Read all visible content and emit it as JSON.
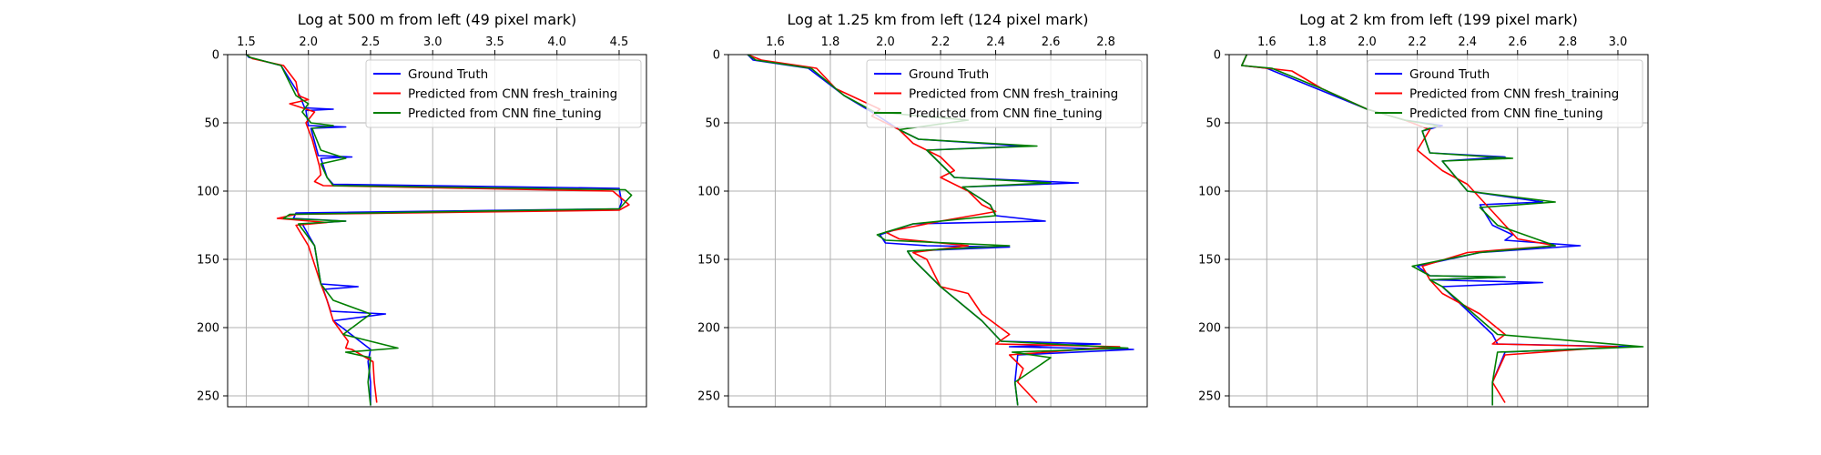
{
  "chart_data": [
    {
      "type": "line",
      "title": "Log at 500 m from left (49 pixel mark)",
      "xlim": [
        1.35,
        4.72
      ],
      "ylim": [
        0,
        258
      ],
      "y_inverted": true,
      "x_axis_position": "top",
      "xticks": [
        1.5,
        2.0,
        2.5,
        3.0,
        3.5,
        4.0,
        4.5
      ],
      "xtick_labels": [
        "1.5",
        "2.0",
        "2.5",
        "3.0",
        "3.5",
        "4.0",
        "4.5"
      ],
      "yticks": [
        0,
        50,
        100,
        150,
        200,
        250
      ],
      "ytick_labels": [
        "0",
        "50",
        "100",
        "150",
        "200",
        "250"
      ],
      "grid": true,
      "legend_position": "top-right",
      "series": [
        {
          "name": "Ground Truth",
          "color": "#0000ff",
          "x": [
            1.5,
            1.52,
            1.78,
            1.93,
            1.97,
            2.2,
            1.98,
            2.0,
            2.3,
            2.02,
            2.08,
            2.35,
            2.1,
            2.15,
            2.2,
            4.5,
            4.52,
            4.5,
            1.9,
            1.88,
            2.3,
            1.95,
            2.05,
            2.1,
            2.4,
            2.12,
            2.18,
            2.62,
            2.2,
            2.5,
            2.48,
            2.5,
            2.5
          ],
          "y": [
            0,
            2,
            8,
            30,
            39,
            40,
            41,
            52,
            53,
            54,
            74,
            75,
            76,
            90,
            95,
            98,
            108,
            113,
            116,
            120,
            122,
            124,
            140,
            168,
            170,
            172,
            188,
            190,
            195,
            216,
            225,
            240,
            257
          ]
        },
        {
          "name": "Predicted from CNN fresh_training",
          "color": "#ff0000",
          "x": [
            1.5,
            1.55,
            1.8,
            1.9,
            1.92,
            2.0,
            1.85,
            2.05,
            1.98,
            2.03,
            2.06,
            2.09,
            2.1,
            2.05,
            2.12,
            4.45,
            4.58,
            4.5,
            1.9,
            1.75,
            2.15,
            1.9,
            2.0,
            2.1,
            2.15,
            2.2,
            2.28,
            2.32,
            2.3,
            2.35,
            2.52,
            2.53,
            2.55
          ],
          "y": [
            0,
            3,
            8,
            20,
            30,
            33,
            36,
            42,
            50,
            62,
            72,
            82,
            88,
            93,
            96,
            100,
            110,
            114,
            117,
            120,
            123,
            125,
            140,
            168,
            180,
            195,
            205,
            210,
            215,
            216,
            225,
            240,
            255
          ]
        },
        {
          "name": "Predicted from CNN fine_tuning",
          "color": "#007f00",
          "x": [
            1.5,
            1.53,
            1.78,
            1.9,
            2.0,
            1.95,
            2.02,
            2.2,
            2.03,
            2.1,
            2.3,
            2.1,
            2.15,
            2.2,
            4.55,
            4.6,
            4.5,
            1.85,
            1.8,
            2.3,
            1.92,
            2.05,
            2.1,
            2.2,
            2.5,
            2.28,
            2.72,
            2.3,
            2.5,
            2.48,
            2.5
          ],
          "y": [
            0,
            2,
            8,
            30,
            36,
            42,
            50,
            52,
            54,
            70,
            76,
            80,
            90,
            96,
            99,
            103,
            113,
            117,
            120,
            122,
            124,
            140,
            168,
            180,
            190,
            205,
            215,
            218,
            222,
            240,
            257
          ]
        }
      ]
    },
    {
      "type": "line",
      "title": "Log at 1.25 km from left (124 pixel mark)",
      "xlim": [
        1.43,
        2.95
      ],
      "ylim": [
        0,
        258
      ],
      "y_inverted": true,
      "x_axis_position": "top",
      "xticks": [
        1.6,
        1.8,
        2.0,
        2.2,
        2.4,
        2.6,
        2.8
      ],
      "xtick_labels": [
        "1.6",
        "1.8",
        "2.0",
        "2.2",
        "2.4",
        "2.6",
        "2.8"
      ],
      "yticks": [
        0,
        50,
        100,
        150,
        200,
        250
      ],
      "ytick_labels": [
        "0",
        "50",
        "100",
        "150",
        "200",
        "250"
      ],
      "grid": true,
      "legend_position": "top-right",
      "series": [
        {
          "name": "Ground Truth",
          "color": "#0000ff",
          "x": [
            1.5,
            1.52,
            1.72,
            1.85,
            1.95,
            2.05,
            2.12,
            2.5,
            2.15,
            2.25,
            2.7,
            2.28,
            2.38,
            2.4,
            2.58,
            2.1,
            1.98,
            2.0,
            2.15,
            2.45,
            2.08,
            2.1,
            2.2,
            2.35,
            2.42,
            2.78,
            2.45,
            2.9,
            2.48,
            2.47,
            2.48
          ],
          "y": [
            0,
            4,
            10,
            30,
            42,
            55,
            62,
            67,
            70,
            90,
            94,
            97,
            110,
            118,
            122,
            124,
            132,
            138,
            140,
            141,
            144,
            150,
            170,
            195,
            210,
            212,
            214,
            216,
            220,
            240,
            257
          ]
        },
        {
          "name": "Predicted from CNN fresh_training",
          "color": "#ff0000",
          "x": [
            1.5,
            1.55,
            1.75,
            1.82,
            1.98,
            1.95,
            2.05,
            2.1,
            2.2,
            2.25,
            2.2,
            2.3,
            2.35,
            2.4,
            2.2,
            2.0,
            2.05,
            2.3,
            2.1,
            2.15,
            2.2,
            2.3,
            2.35,
            2.45,
            2.4,
            2.85,
            2.45,
            2.5,
            2.48,
            2.55
          ],
          "y": [
            0,
            4,
            10,
            25,
            40,
            45,
            55,
            65,
            75,
            85,
            90,
            100,
            110,
            115,
            122,
            130,
            135,
            140,
            145,
            150,
            170,
            175,
            190,
            205,
            212,
            214,
            220,
            230,
            240,
            255
          ]
        },
        {
          "name": "Predicted from CNN fine_tuning",
          "color": "#007f00",
          "x": [
            1.5,
            1.53,
            1.73,
            1.85,
            1.96,
            2.3,
            2.05,
            2.12,
            2.55,
            2.15,
            2.25,
            2.6,
            2.28,
            2.38,
            2.4,
            2.1,
            1.97,
            2.0,
            2.45,
            2.08,
            2.1,
            2.2,
            2.35,
            2.42,
            2.88,
            2.46,
            2.6,
            2.47,
            2.48
          ],
          "y": [
            0,
            4,
            10,
            30,
            42,
            48,
            55,
            62,
            67,
            70,
            90,
            94,
            97,
            110,
            118,
            124,
            132,
            136,
            140,
            144,
            150,
            170,
            195,
            210,
            215,
            218,
            222,
            240,
            257
          ]
        }
      ]
    },
    {
      "type": "line",
      "title": "Log at 2 km from left (199 pixel mark)",
      "xlim": [
        1.45,
        3.12
      ],
      "ylim": [
        0,
        258
      ],
      "y_inverted": true,
      "x_axis_position": "top",
      "xticks": [
        1.6,
        1.8,
        2.0,
        2.2,
        2.4,
        2.6,
        2.8,
        3.0
      ],
      "xtick_labels": [
        "1.6",
        "1.8",
        "2.0",
        "2.2",
        "2.4",
        "2.6",
        "2.8",
        "3.0"
      ],
      "yticks": [
        0,
        50,
        100,
        150,
        200,
        250
      ],
      "ytick_labels": [
        "0",
        "50",
        "100",
        "150",
        "200",
        "250"
      ],
      "grid": true,
      "legend_position": "top-right",
      "series": [
        {
          "name": "Ground Truth",
          "color": "#0000ff",
          "x": [
            1.52,
            1.5,
            1.6,
            1.8,
            2.0,
            2.15,
            2.3,
            2.22,
            2.25,
            2.55,
            2.3,
            2.4,
            2.7,
            2.45,
            2.5,
            2.58,
            2.55,
            2.85,
            2.45,
            2.2,
            2.25,
            2.55,
            2.25,
            2.7,
            2.3,
            2.5,
            2.52,
            3.05,
            2.55,
            2.5,
            2.5
          ],
          "y": [
            0,
            8,
            10,
            25,
            40,
            48,
            52,
            56,
            72,
            75,
            78,
            100,
            108,
            110,
            125,
            132,
            136,
            140,
            145,
            155,
            162,
            163,
            165,
            167,
            170,
            205,
            212,
            214,
            218,
            240,
            257
          ]
        },
        {
          "name": "Predicted from CNN fresh_training",
          "color": "#ff0000",
          "x": [
            1.52,
            1.5,
            1.7,
            1.82,
            2.0,
            2.15,
            2.25,
            2.2,
            2.3,
            2.4,
            2.45,
            2.5,
            2.55,
            2.6,
            2.75,
            2.4,
            2.22,
            2.25,
            2.3,
            2.45,
            2.55,
            2.5,
            3.0,
            2.55,
            2.5,
            2.55
          ],
          "y": [
            0,
            8,
            12,
            25,
            40,
            48,
            55,
            70,
            85,
            95,
            105,
            115,
            125,
            135,
            140,
            145,
            155,
            165,
            175,
            190,
            205,
            212,
            214,
            220,
            240,
            255
          ]
        },
        {
          "name": "Predicted from CNN fine_tuning",
          "color": "#007f00",
          "x": [
            1.52,
            1.5,
            1.62,
            1.82,
            2.0,
            2.15,
            2.28,
            2.22,
            2.25,
            2.58,
            2.3,
            2.4,
            2.75,
            2.45,
            2.52,
            2.75,
            2.45,
            2.18,
            2.25,
            2.55,
            2.25,
            2.3,
            2.52,
            3.1,
            2.52,
            2.5,
            2.5
          ],
          "y": [
            0,
            8,
            10,
            25,
            40,
            48,
            52,
            56,
            72,
            76,
            78,
            100,
            108,
            112,
            125,
            140,
            145,
            155,
            162,
            163,
            165,
            170,
            205,
            214,
            218,
            240,
            257
          ]
        }
      ]
    }
  ]
}
